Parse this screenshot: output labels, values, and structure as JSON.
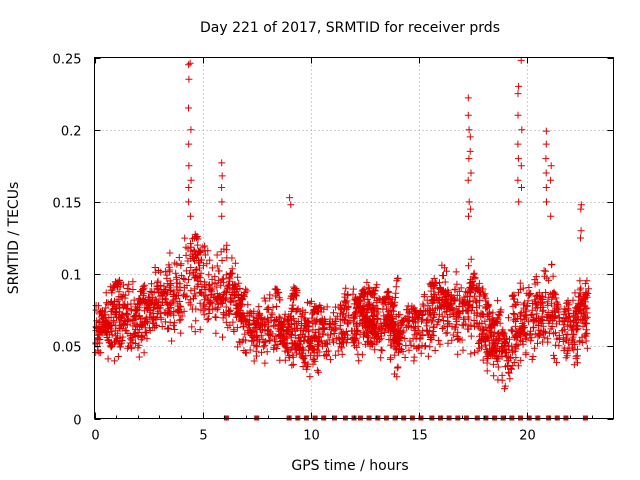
{
  "chart_data": {
    "type": "scatter",
    "title": "Day 221 of 2017, SRMTID for receiver prds",
    "xlabel": "GPS time / hours",
    "ylabel": "SRMTID / TECUs",
    "xlim": [
      0,
      24
    ],
    "ylim": [
      0,
      0.25
    ],
    "x_ticks": [
      0,
      5,
      10,
      15,
      20
    ],
    "x_tick_labels": [
      "0",
      "5",
      "10",
      "15",
      "20"
    ],
    "y_ticks": [
      0,
      0.05,
      0.1,
      0.15,
      0.2,
      0.25
    ],
    "y_tick_labels": [
      "0",
      "0.05",
      "0.1",
      "0.15",
      "0.2",
      "0.25"
    ],
    "grid": true,
    "marker": "plus",
    "color": "#e00000",
    "series": [
      {
        "name": "SRMTID",
        "profile_hours": [
          0,
          0.5,
          1,
          1.5,
          2,
          2.5,
          3,
          3.5,
          4,
          4.5,
          5,
          5.5,
          6,
          6.5,
          7,
          7.5,
          8,
          8.5,
          9,
          9.5,
          10,
          10.5,
          11,
          11.5,
          12,
          12.5,
          13,
          13.5,
          14,
          14.5,
          15,
          15.5,
          16,
          16.5,
          17,
          17.5,
          18,
          18.5,
          19,
          19.5,
          20,
          20.5,
          21,
          21.5,
          22,
          22.5
        ],
        "profile_median": [
          0.065,
          0.066,
          0.068,
          0.07,
          0.062,
          0.075,
          0.08,
          0.082,
          0.09,
          0.1,
          0.095,
          0.085,
          0.09,
          0.08,
          0.06,
          0.062,
          0.065,
          0.065,
          0.06,
          0.058,
          0.055,
          0.06,
          0.06,
          0.065,
          0.065,
          0.07,
          0.065,
          0.065,
          0.06,
          0.065,
          0.062,
          0.07,
          0.08,
          0.075,
          0.07,
          0.085,
          0.06,
          0.055,
          0.05,
          0.065,
          0.065,
          0.07,
          0.08,
          0.065,
          0.06,
          0.065
        ],
        "profile_spread": [
          0.03,
          0.03,
          0.03,
          0.03,
          0.03,
          0.03,
          0.035,
          0.035,
          0.04,
          0.05,
          0.04,
          0.035,
          0.04,
          0.035,
          0.03,
          0.03,
          0.03,
          0.03,
          0.03,
          0.03,
          0.03,
          0.03,
          0.03,
          0.03,
          0.03,
          0.035,
          0.03,
          0.03,
          0.03,
          0.03,
          0.03,
          0.035,
          0.035,
          0.035,
          0.035,
          0.045,
          0.035,
          0.035,
          0.035,
          0.035,
          0.035,
          0.04,
          0.04,
          0.035,
          0.035,
          0.035
        ],
        "peaks": [
          {
            "x": 4.35,
            "y": [
              0.245,
              0.235,
              0.215,
              0.19,
              0.175,
              0.16,
              0.15
            ]
          },
          {
            "x": 4.45,
            "y": [
              0.246,
              0.2,
              0.165,
              0.14
            ]
          },
          {
            "x": 5.9,
            "y": [
              0.177,
              0.168,
              0.16,
              0.15,
              0.14
            ]
          },
          {
            "x": 9.05,
            "y": [
              0.153,
              0.148
            ]
          },
          {
            "x": 17.3,
            "y": [
              0.222,
              0.21,
              0.2,
              0.18,
              0.165,
              0.15,
              0.14
            ]
          },
          {
            "x": 17.4,
            "y": [
              0.195,
              0.185,
              0.17,
              0.145
            ]
          },
          {
            "x": 19.6,
            "y": [
              0.23,
              0.225,
              0.21,
              0.19,
              0.18,
              0.165,
              0.15
            ]
          },
          {
            "x": 19.75,
            "y": [
              0.248,
              0.2,
              0.175,
              0.16
            ]
          },
          {
            "x": 20.9,
            "y": [
              0.199,
              0.19,
              0.18,
              0.17,
              0.16,
              0.15
            ]
          },
          {
            "x": 21.1,
            "y": [
              0.175,
              0.165,
              0.14
            ]
          },
          {
            "x": 22.5,
            "y": [
              0.148,
              0.145,
              0.13,
              0.125
            ]
          }
        ],
        "zero_markers_x": [
          6.1,
          7.5,
          9.0,
          9.4,
          9.8,
          10.2,
          10.6,
          11.1,
          11.6,
          12.0,
          12.3,
          12.7,
          13.1,
          13.5,
          13.9,
          14.3,
          14.7,
          15.1,
          15.6,
          16.0,
          16.4,
          16.8,
          17.2,
          17.7,
          18.1,
          18.5,
          18.9,
          19.3,
          19.7,
          20.1,
          20.5,
          21.0,
          21.4,
          21.8,
          22.7
        ],
        "samples_per_hour": 90
      }
    ]
  }
}
